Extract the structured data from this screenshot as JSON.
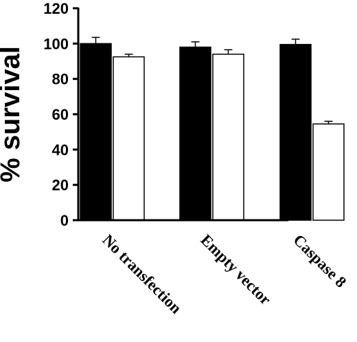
{
  "chart_data": {
    "type": "bar",
    "ylabel": "% survival",
    "ylim": [
      0,
      120
    ],
    "yticks": [
      0,
      20,
      40,
      60,
      80,
      100,
      120
    ],
    "grid": false,
    "categories": [
      "No transfection",
      "Empty vector",
      "Caspase 8"
    ],
    "series": [
      {
        "color": "#000000",
        "values": [
          100,
          98,
          99.5
        ],
        "errors": [
          3.5,
          3,
          3
        ]
      },
      {
        "color": "#ffffff",
        "values": [
          92.5,
          94,
          54.5
        ],
        "errors": [
          1.5,
          2.5,
          1.5
        ]
      }
    ]
  }
}
